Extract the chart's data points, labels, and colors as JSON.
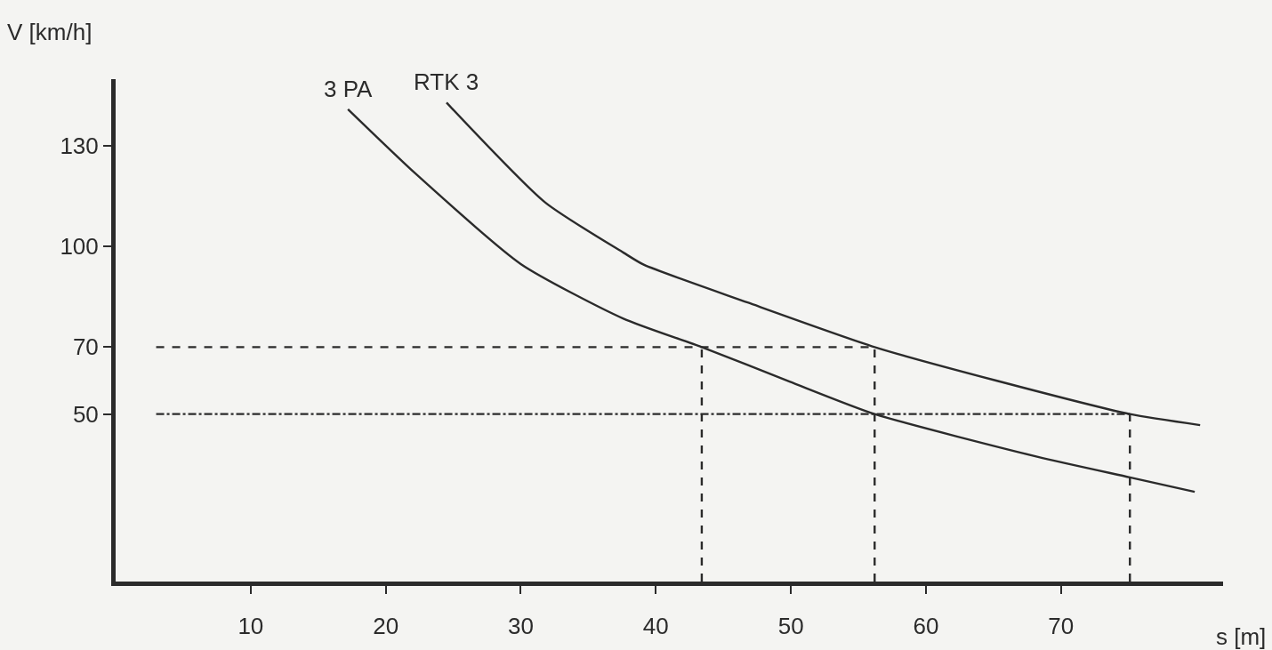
{
  "chart_data": {
    "type": "line",
    "xlabel": "s [m]",
    "ylabel": "V [km/h]",
    "xlim": [
      0,
      82
    ],
    "ylim": [
      0,
      150
    ],
    "xticks": [
      10,
      20,
      30,
      40,
      50,
      60,
      70
    ],
    "yticks": [
      50,
      70,
      100,
      130
    ],
    "grid": false,
    "legend": false,
    "marker": "none",
    "series": [
      {
        "name": "3 PA",
        "color": "#2b2b2b",
        "line_style": "solid",
        "x": [
          17.2,
          22.2,
          30,
          37.6,
          43.4,
          49.9,
          56.2,
          68.3,
          75.1,
          79.9
        ],
        "values": [
          141,
          121.8,
          94.8,
          78.5,
          70,
          59.7,
          50,
          37.2,
          31.1,
          26.8
        ]
      },
      {
        "name": "RTK 3",
        "color": "#2b2b2b",
        "line_style": "solid",
        "x": [
          24.5,
          31.8,
          37.6,
          39.1,
          46.8,
          56.2,
          65.2,
          75.1,
          80.3
        ],
        "values": [
          143,
          113.2,
          98.2,
          94.6,
          83.3,
          70,
          60,
          50,
          46.7
        ]
      },
      {
        "color": "#2b2b2b",
        "line_style": "dashed",
        "x": [
          3,
          56.2
        ],
        "values": [
          70,
          70
        ]
      },
      {
        "color": "#2b2b2b",
        "line_style": "dashdot",
        "x": [
          3,
          75.1
        ],
        "values": [
          50,
          50
        ]
      },
      {
        "color": "#2b2b2b",
        "line_style": "dashed",
        "x": [
          43.4,
          43.4
        ],
        "values": [
          0,
          70
        ]
      },
      {
        "color": "#2b2b2b",
        "line_style": "dashed",
        "x": [
          56.2,
          56.2
        ],
        "values": [
          0,
          70
        ]
      },
      {
        "color": "#2b2b2b",
        "line_style": "dashed",
        "x": [
          75.1,
          75.1
        ],
        "values": [
          0,
          50
        ]
      }
    ]
  }
}
